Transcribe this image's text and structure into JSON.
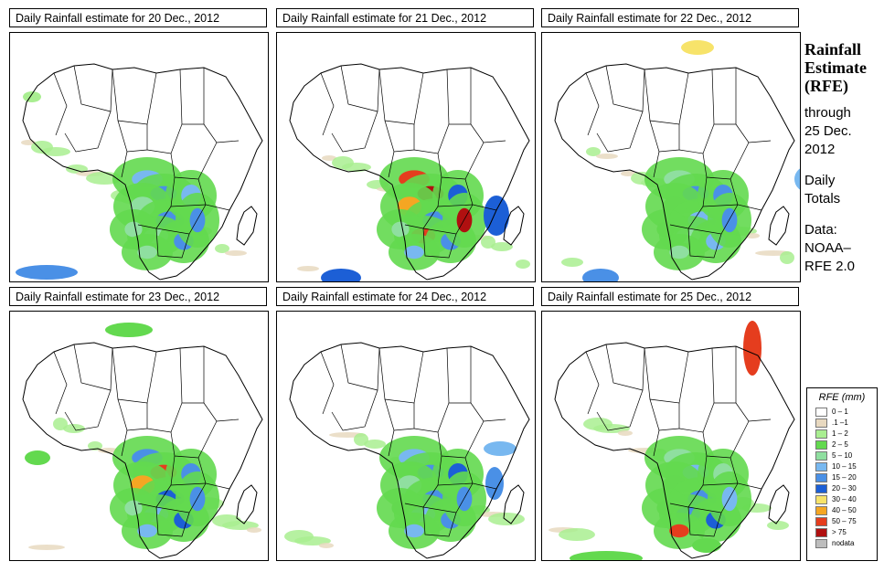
{
  "panels": [
    {
      "title": "Daily Rainfall estimate for  20 Dec., 2012"
    },
    {
      "title": "Daily Rainfall estimate for  21 Dec., 2012"
    },
    {
      "title": "Daily Rainfall estimate for  22 Dec., 2012"
    },
    {
      "title": "Daily Rainfall estimate for  23 Dec., 2012"
    },
    {
      "title": "Daily Rainfall estimate for  24 Dec., 2012"
    },
    {
      "title": "Daily Rainfall estimate for  25 Dec., 2012"
    }
  ],
  "side": {
    "title_line1": "Rainfall",
    "title_line2": "Estimate",
    "title_line3": "(RFE)",
    "through": "through",
    "date_line1": "25 Dec.",
    "date_line2": "2012",
    "daily": "Daily",
    "totals": "Totals",
    "data_label": "Data:",
    "source_line1": "NOAA–",
    "source_line2": "RFE 2.0"
  },
  "legend": {
    "title": "RFE (mm)",
    "items": [
      {
        "label": "0 – 1",
        "color": "#ffffff"
      },
      {
        "label": ".1 –1",
        "color": "#e8d9c0"
      },
      {
        "label": "1 – 2",
        "color": "#a9ee91"
      },
      {
        "label": "2 – 5",
        "color": "#63d94f"
      },
      {
        "label": "5 – 10",
        "color": "#8fdfa0"
      },
      {
        "label": "10 – 15",
        "color": "#78b8f0"
      },
      {
        "label": "15 – 20",
        "color": "#4a90e6"
      },
      {
        "label": "20 – 30",
        "color": "#1c5fd6"
      },
      {
        "label": "30 – 40",
        "color": "#f7e36a"
      },
      {
        "label": "40 – 50",
        "color": "#f5a623"
      },
      {
        "label": "50 – 75",
        "color": "#e53d1e"
      },
      {
        "label": "> 75",
        "color": "#b01010"
      },
      {
        "label": "nodata",
        "color": "#bdbdbd"
      }
    ]
  }
}
